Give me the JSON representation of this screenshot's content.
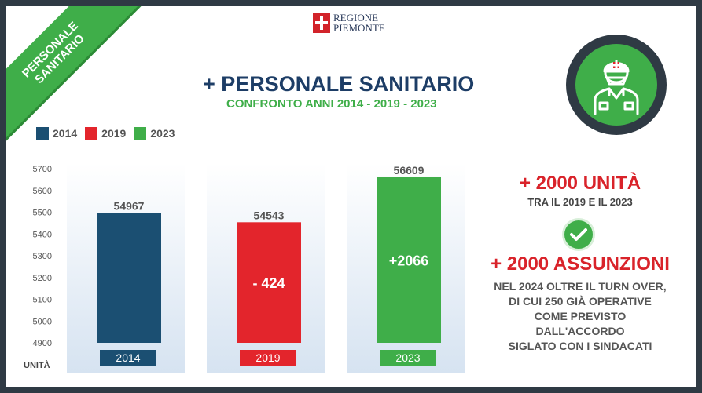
{
  "ribbon": {
    "line1": "PERSONALE",
    "line2": "SANITARIO"
  },
  "logo": {
    "line1": "REGIONE",
    "line2": "PIEMONTE"
  },
  "title": "+ PERSONALE SANITARIO",
  "subtitle": "CONFRONTO ANNI 2014 - 2019 - 2023",
  "icons": {
    "badge": "doctor-icon",
    "check": "checkmark-icon"
  },
  "colors": {
    "2014": "#1b4f72",
    "2019": "#e3252c",
    "2023": "#3fae49"
  },
  "chart_data": {
    "type": "bar",
    "categories": [
      "2014",
      "2019",
      "2023"
    ],
    "values": [
      54967,
      54543,
      56609
    ],
    "value_labels": [
      "54967",
      "54543",
      "56609"
    ],
    "inner_labels": [
      "",
      "- 424",
      "+2066"
    ],
    "legend": [
      "2014",
      "2019",
      "2023"
    ],
    "y_ticks": [
      4900,
      5000,
      5100,
      5200,
      5300,
      5400,
      5500,
      5600,
      5700
    ],
    "ylabel": "UNITÀ",
    "legend_position": "top-left",
    "grid": false
  },
  "right_panel": {
    "headline1": "+ 2000 UNITÀ",
    "sub1": "TRA IL 2019 E IL 2023",
    "headline2": "+ 2000 ASSUNZIONI",
    "lines": [
      "NEL 2024  OLTRE IL TURN OVER,",
      "DI CUI 250 GIÀ OPERATIVE",
      "COME PREVISTO",
      "DALL'ACCORDO",
      "SIGLATO CON I SINDACATI"
    ]
  }
}
